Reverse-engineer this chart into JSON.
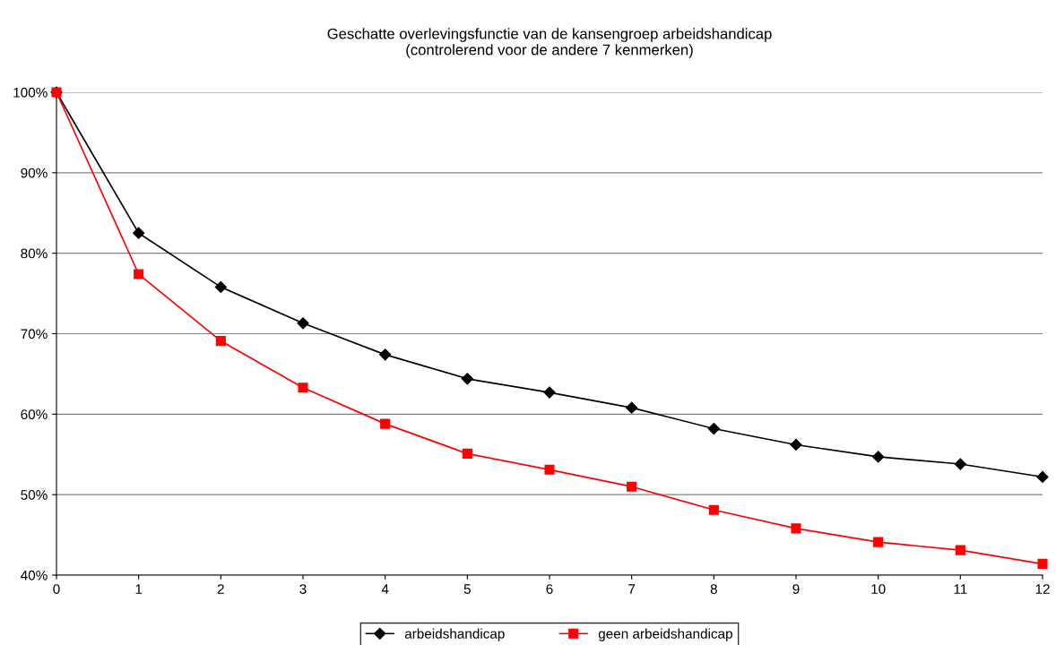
{
  "chart_data": {
    "type": "line",
    "title": "Geschatte overlevingsfunctie van de kansengroep arbeidshandicap\n(controlerend voor de andere 7 kenmerken)",
    "x": [
      0,
      1,
      2,
      3,
      4,
      5,
      6,
      7,
      8,
      9,
      10,
      11,
      12
    ],
    "series": [
      {
        "name": "arbeidshandicap",
        "color": "#000000",
        "marker": "diamond",
        "values": [
          100,
          82.5,
          75.8,
          71.3,
          67.4,
          64.4,
          62.7,
          60.8,
          58.2,
          56.2,
          54.7,
          53.8,
          52.2
        ]
      },
      {
        "name": "geen arbeidshandicap",
        "color": "#ff0000",
        "marker": "square",
        "values": [
          100,
          77.4,
          69.1,
          63.3,
          58.8,
          55.1,
          53.1,
          51.0,
          48.1,
          45.8,
          44.1,
          43.1,
          41.4
        ]
      }
    ],
    "xlim": [
      0,
      12
    ],
    "xticks": [
      0,
      1,
      2,
      3,
      4,
      5,
      6,
      7,
      8,
      9,
      10,
      11,
      12
    ],
    "ylim": [
      40,
      100
    ],
    "yticks": [
      {
        "value": 40,
        "label": "40%"
      },
      {
        "value": 50,
        "label": "50%"
      },
      {
        "value": 60,
        "label": "60%"
      },
      {
        "value": 70,
        "label": "70%"
      },
      {
        "value": 80,
        "label": "80%"
      },
      {
        "value": 90,
        "label": "90%"
      },
      {
        "value": 100,
        "label": "100%"
      }
    ],
    "grid": "y",
    "legend": "bottom",
    "line_style": "solid"
  }
}
